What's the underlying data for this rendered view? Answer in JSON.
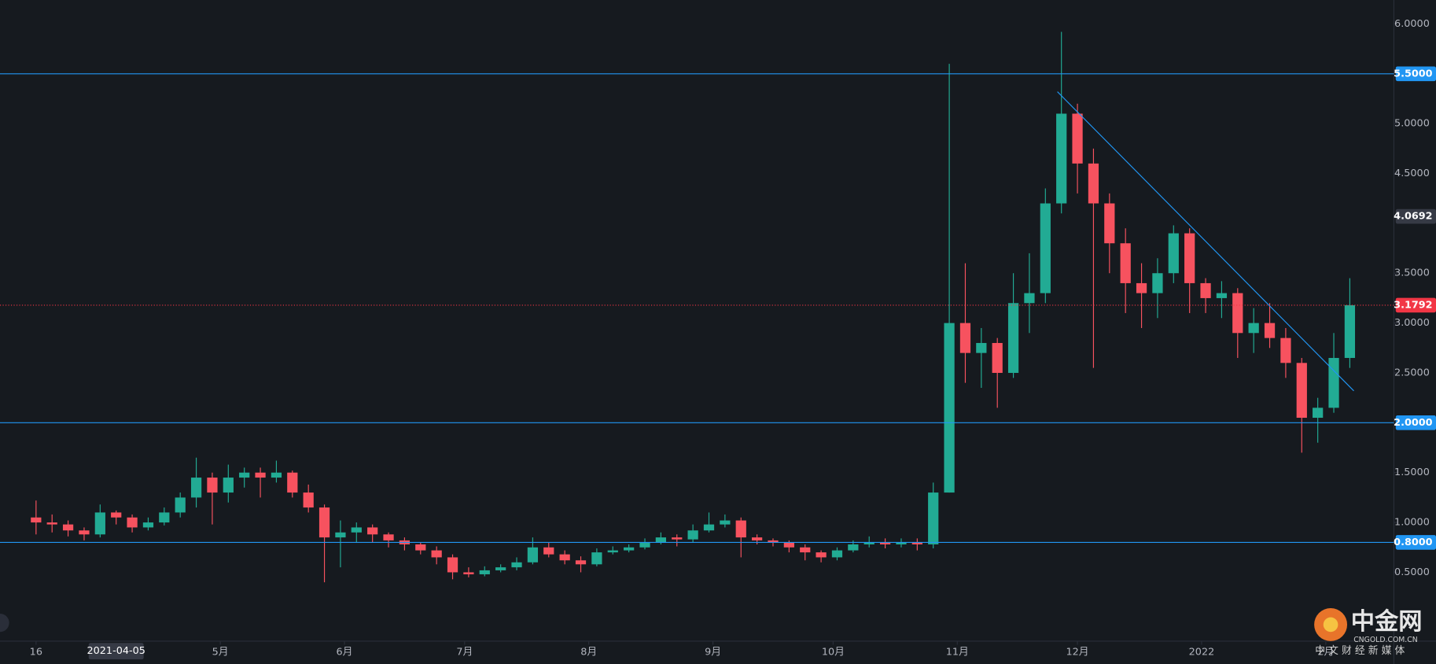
{
  "chart_data": {
    "type": "candlestick",
    "colors": {
      "up": "#22ab94",
      "down": "#f7525f",
      "level": "#2196f3",
      "last": "#f23645",
      "marker": "#363a45"
    },
    "x": [
      "2021-03-16",
      "2021-03-20",
      "2021-03-24",
      "2021-03-28",
      "2021-04-01",
      "2021-04-05",
      "2021-04-09",
      "2021-04-13",
      "2021-04-17",
      "2021-04-21",
      "2021-04-25",
      "2021-04-29",
      "2021-05-03",
      "2021-05-07",
      "2021-05-11",
      "2021-05-15",
      "2021-05-19",
      "2021-05-23",
      "2021-05-27",
      "2021-05-31",
      "2021-06-04",
      "2021-06-08",
      "2021-06-12",
      "2021-06-16",
      "2021-06-20",
      "2021-06-24",
      "2021-06-28",
      "2021-07-02",
      "2021-07-06",
      "2021-07-10",
      "2021-07-14",
      "2021-07-18",
      "2021-07-22",
      "2021-07-26",
      "2021-07-30",
      "2021-08-03",
      "2021-08-07",
      "2021-08-11",
      "2021-08-15",
      "2021-08-19",
      "2021-08-23",
      "2021-08-27",
      "2021-08-31",
      "2021-09-04",
      "2021-09-08",
      "2021-09-12",
      "2021-09-16",
      "2021-09-20",
      "2021-09-24",
      "2021-09-28",
      "2021-10-02",
      "2021-10-06",
      "2021-10-10",
      "2021-10-14",
      "2021-10-18",
      "2021-10-22",
      "2021-10-26",
      "2021-10-30",
      "2021-11-03",
      "2021-11-07",
      "2021-11-11",
      "2021-11-15",
      "2021-11-19",
      "2021-11-23",
      "2021-11-27",
      "2021-12-01",
      "2021-12-05",
      "2021-12-09",
      "2021-12-13",
      "2021-12-17",
      "2021-12-21",
      "2021-12-25",
      "2021-12-29",
      "2022-01-02",
      "2022-01-06",
      "2022-01-10",
      "2022-01-14",
      "2022-01-18",
      "2022-01-22",
      "2022-01-26",
      "2022-01-30",
      "2022-02-03",
      "2022-02-07"
    ],
    "open": [
      1.05,
      1.0,
      0.98,
      0.92,
      0.88,
      1.1,
      1.05,
      0.95,
      1.0,
      1.1,
      1.25,
      1.45,
      1.3,
      1.45,
      1.5,
      1.45,
      1.5,
      1.3,
      1.15,
      0.85,
      0.9,
      0.95,
      0.88,
      0.82,
      0.78,
      0.72,
      0.65,
      0.5,
      0.48,
      0.52,
      0.55,
      0.6,
      0.75,
      0.68,
      0.62,
      0.58,
      0.7,
      0.72,
      0.75,
      0.8,
      0.85,
      0.83,
      0.92,
      0.98,
      1.02,
      0.85,
      0.82,
      0.8,
      0.75,
      0.7,
      0.65,
      0.72,
      0.78,
      0.8,
      0.78,
      0.8,
      0.78,
      1.3,
      3.0,
      2.7,
      2.8,
      2.5,
      3.2,
      3.3,
      4.2,
      5.1,
      4.6,
      4.2,
      3.8,
      3.4,
      3.3,
      3.5,
      3.9,
      3.4,
      3.25,
      3.3,
      2.9,
      3.0,
      2.85,
      2.6,
      2.05,
      2.15,
      2.65
    ],
    "high": [
      1.22,
      1.08,
      1.02,
      0.95,
      1.18,
      1.12,
      1.08,
      1.05,
      1.15,
      1.3,
      1.65,
      1.5,
      1.58,
      1.55,
      1.55,
      1.62,
      1.52,
      1.38,
      1.18,
      1.02,
      1.0,
      0.98,
      0.9,
      0.85,
      0.8,
      0.76,
      0.68,
      0.55,
      0.56,
      0.58,
      0.65,
      0.85,
      0.8,
      0.72,
      0.66,
      0.74,
      0.76,
      0.78,
      0.84,
      0.9,
      0.88,
      0.98,
      1.1,
      1.08,
      1.05,
      0.88,
      0.84,
      0.82,
      0.78,
      0.72,
      0.75,
      0.82,
      0.86,
      0.84,
      0.84,
      0.84,
      1.4,
      5.6,
      3.6,
      2.95,
      2.85,
      3.5,
      3.7,
      4.35,
      5.92,
      5.2,
      4.75,
      4.3,
      3.95,
      3.6,
      3.65,
      3.98,
      3.95,
      3.45,
      3.42,
      3.35,
      3.15,
      3.2,
      2.95,
      2.65,
      2.25,
      2.9,
      3.45
    ],
    "low": [
      0.88,
      0.9,
      0.86,
      0.82,
      0.85,
      0.98,
      0.9,
      0.92,
      0.97,
      1.05,
      1.15,
      0.98,
      1.2,
      1.35,
      1.25,
      1.4,
      1.25,
      1.1,
      0.4,
      0.55,
      0.8,
      0.8,
      0.75,
      0.72,
      0.68,
      0.58,
      0.43,
      0.45,
      0.46,
      0.5,
      0.52,
      0.58,
      0.65,
      0.58,
      0.5,
      0.56,
      0.68,
      0.7,
      0.73,
      0.78,
      0.76,
      0.8,
      0.9,
      0.95,
      0.65,
      0.78,
      0.76,
      0.7,
      0.62,
      0.6,
      0.62,
      0.7,
      0.75,
      0.74,
      0.75,
      0.72,
      0.74,
      1.3,
      2.4,
      2.35,
      2.15,
      2.45,
      2.9,
      3.2,
      4.1,
      4.3,
      2.55,
      3.5,
      3.1,
      2.95,
      3.05,
      3.4,
      3.1,
      3.1,
      3.05,
      2.65,
      2.7,
      2.75,
      2.45,
      1.7,
      1.8,
      2.1,
      2.55
    ],
    "close": [
      1.0,
      0.98,
      0.92,
      0.88,
      1.1,
      1.05,
      0.95,
      1.0,
      1.1,
      1.25,
      1.45,
      1.3,
      1.45,
      1.5,
      1.45,
      1.5,
      1.3,
      1.15,
      0.85,
      0.9,
      0.95,
      0.88,
      0.82,
      0.78,
      0.72,
      0.65,
      0.5,
      0.48,
      0.52,
      0.55,
      0.6,
      0.75,
      0.68,
      0.62,
      0.58,
      0.7,
      0.72,
      0.75,
      0.8,
      0.85,
      0.83,
      0.92,
      0.98,
      1.02,
      0.85,
      0.82,
      0.8,
      0.75,
      0.7,
      0.65,
      0.72,
      0.78,
      0.8,
      0.78,
      0.8,
      0.78,
      1.3,
      3.0,
      2.7,
      2.8,
      2.5,
      3.2,
      3.3,
      4.2,
      5.1,
      4.6,
      4.2,
      3.8,
      3.4,
      3.3,
      3.5,
      3.9,
      3.4,
      3.25,
      3.3,
      2.9,
      3.0,
      2.85,
      2.6,
      2.05,
      2.15,
      2.65,
      3.1792
    ],
    "xlim": [
      "2021-03-07",
      "2022-02-18"
    ],
    "ylim": [
      -0.19,
      6.24
    ],
    "yticks": [
      {
        "value": 0.5,
        "label": "0.5000"
      },
      {
        "value": 1,
        "label": "1.0000"
      },
      {
        "value": 1.5,
        "label": "1.5000"
      },
      {
        "value": 2.5,
        "label": "2.5000"
      },
      {
        "value": 3,
        "label": "3.0000"
      },
      {
        "value": 3.5,
        "label": "3.5000"
      },
      {
        "value": 4.5,
        "label": "4.5000"
      },
      {
        "value": 5,
        "label": "5.0000"
      },
      {
        "value": 6,
        "label": "6.0000"
      }
    ],
    "xticks": [
      {
        "value": "2021-03-16",
        "label": "16"
      },
      {
        "value": "2021-05-01",
        "label": "5月"
      },
      {
        "value": "2021-06-01",
        "label": "6月"
      },
      {
        "value": "2021-07-01",
        "label": "7月"
      },
      {
        "value": "2021-08-01",
        "label": "8月"
      },
      {
        "value": "2021-09-01",
        "label": "9月"
      },
      {
        "value": "2021-10-01",
        "label": "10月"
      },
      {
        "value": "2021-11-01",
        "label": "11月"
      },
      {
        "value": "2021-12-01",
        "label": "12月"
      },
      {
        "value": "2022-01-01",
        "label": "2022"
      },
      {
        "value": "2022-02-01",
        "label": "2月"
      }
    ],
    "crosshair_date": "2021-04-05",
    "levels": [
      {
        "value": 5.5,
        "label": "5.5000"
      },
      {
        "value": 2,
        "label": "2.0000"
      },
      {
        "value": 0.8,
        "label": "0.8000"
      }
    ],
    "marker_price": {
      "value": 4.0692,
      "label": "4.0692"
    },
    "last_price": {
      "value": 3.1792,
      "label": "3.1792"
    },
    "trendline": {
      "x": [
        "2021-11-26",
        "2022-02-08"
      ],
      "y": [
        5.32,
        2.32
      ]
    },
    "watermark": {
      "name": "中金网",
      "domain": "CNGOLD.COM.CN",
      "tagline": "中 文 财 经 新 媒 体"
    }
  }
}
